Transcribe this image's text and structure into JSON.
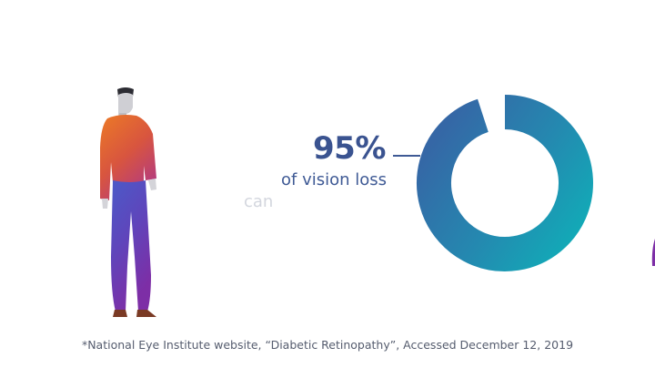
{
  "stat": {
    "percent": "95%",
    "caption": "of vision loss",
    "faded_word": "can"
  },
  "donut": {
    "filled_fraction": 0.95
  },
  "footnote": {
    "text": "*National Eye Institute website, “Diabetic Retinopathy”, Accessed December 12, 2019"
  },
  "colors": {
    "background": "#ffffff",
    "stat_text": "#3a5390",
    "donut_gradient_start": "#3a6fa8",
    "donut_gradient_end": "#17a7b8",
    "sweater_top": "#e8722a",
    "sweater_bottom": "#b9407a",
    "pants_top": "#4a55c4",
    "pants_bottom": "#7b2fa8",
    "faded_text": "#d3d6de",
    "footnote_text": "#555c6e"
  }
}
